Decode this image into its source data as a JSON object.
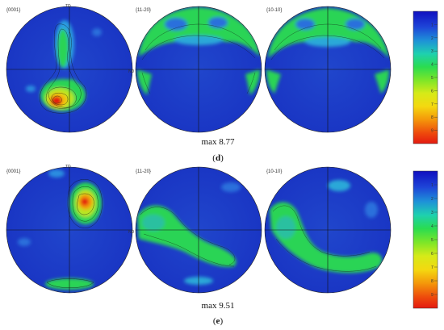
{
  "rows": [
    {
      "id": "d",
      "panels": [
        "{0001}",
        "{11-20}",
        "{10-10}"
      ],
      "td_label": "TD",
      "nd_label": "ND",
      "max_text": "max 8.77",
      "caption": "(d)",
      "caption_letter": "d"
    },
    {
      "id": "e",
      "panels": [
        "{0001}",
        "{11-20}",
        "{10-10}"
      ],
      "td_label": "TD",
      "nd_label": "ND",
      "max_text": "max 9.51",
      "caption": "(e)",
      "caption_letter": "e"
    }
  ],
  "colorbar": {
    "ticks": [
      "1",
      "2",
      "3",
      "4",
      "5",
      "6",
      "7",
      "8",
      "9"
    ],
    "colors": [
      "#1414c8",
      "#1e3cd2",
      "#1e78d2",
      "#1ec8a0",
      "#2edc3c",
      "#b4e61e",
      "#f0e614",
      "#f08c0a",
      "#e61414"
    ]
  },
  "colors": {
    "base_blue": "#1e32c0",
    "mid_blue": "#2a5ad8",
    "green": "#2bd454",
    "yellow": "#f2e210",
    "red": "#e41a10"
  }
}
